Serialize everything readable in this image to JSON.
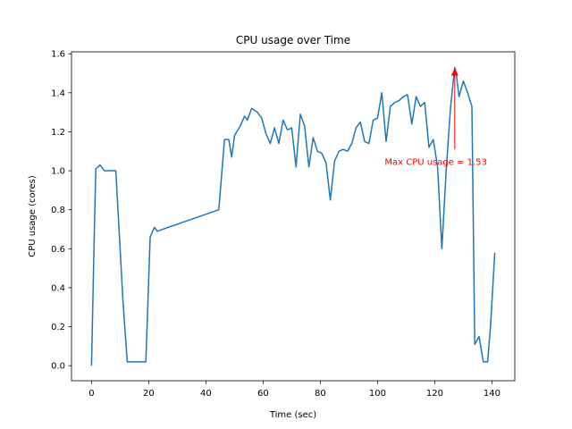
{
  "chart_data": {
    "type": "line",
    "title": "CPU usage over Time",
    "xlabel": "Time (sec)",
    "ylabel": "CPU usage (cores)",
    "xlim": [
      -7,
      148
    ],
    "ylim": [
      -0.077,
      1.61
    ],
    "xticks": [
      0,
      20,
      40,
      60,
      80,
      100,
      120,
      140
    ],
    "xtick_labels": [
      "0",
      "20",
      "40",
      "60",
      "80",
      "100",
      "120",
      "140"
    ],
    "yticks": [
      0.0,
      0.2,
      0.4,
      0.6,
      0.8,
      1.0,
      1.2,
      1.4,
      1.6
    ],
    "ytick_labels": [
      "0.0",
      "0.2",
      "0.4",
      "0.6",
      "0.8",
      "1.0",
      "1.2",
      "1.4",
      "1.6"
    ],
    "grid": false,
    "series": [
      {
        "color": "#1f77b4",
        "x": [
          0,
          1,
          1.5,
          3,
          4.5,
          8.5,
          11,
          12.5,
          15.5,
          17,
          19,
          20.5,
          22,
          23,
          44.5,
          46.5,
          48,
          49,
          50,
          52,
          53.5,
          54.5,
          56,
          58,
          59.5,
          61,
          62.5,
          64,
          65.5,
          67,
          68.5,
          70,
          71.5,
          73,
          74.5,
          76,
          77.5,
          79,
          80.5,
          82,
          83.5,
          85,
          86.5,
          88,
          89.5,
          91,
          92.5,
          94,
          95.5,
          97,
          98.5,
          100,
          101.5,
          103,
          104.5,
          106,
          107.5,
          109,
          110.5,
          112,
          113.5,
          115,
          116.5,
          118,
          119.5,
          121,
          122.5,
          124,
          125.5,
          127,
          127.5,
          128.5,
          130,
          131.5,
          133,
          134,
          135.5,
          137,
          138.5,
          139.5,
          141
        ],
        "y": [
          0.0,
          0.7,
          1.01,
          1.03,
          1.0,
          1.0,
          0.33,
          0.02,
          0.02,
          0.02,
          0.02,
          0.66,
          0.71,
          0.69,
          0.8,
          1.16,
          1.16,
          1.07,
          1.18,
          1.23,
          1.28,
          1.26,
          1.32,
          1.3,
          1.27,
          1.19,
          1.14,
          1.22,
          1.14,
          1.26,
          1.21,
          1.22,
          1.02,
          1.29,
          1.23,
          1.02,
          1.17,
          1.1,
          1.09,
          1.04,
          0.85,
          1.05,
          1.1,
          1.11,
          1.1,
          1.14,
          1.22,
          1.25,
          1.15,
          1.14,
          1.26,
          1.27,
          1.4,
          1.15,
          1.33,
          1.35,
          1.36,
          1.38,
          1.39,
          1.24,
          1.38,
          1.33,
          1.35,
          1.12,
          1.16,
          1.02,
          0.6,
          1.0,
          1.32,
          1.53,
          1.5,
          1.38,
          1.46,
          1.4,
          1.33,
          0.11,
          0.15,
          0.02,
          0.02,
          0.2,
          0.58
        ]
      }
    ],
    "annotation": {
      "text": "Max CPU usage = 1.53",
      "point": [
        127,
        1.53
      ],
      "text_pos": [
        102.5,
        1.03
      ],
      "color": "#ff0000"
    }
  }
}
